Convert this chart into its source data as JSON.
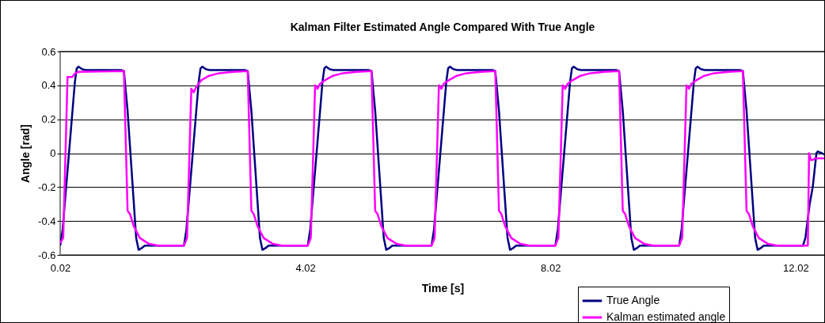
{
  "chart_data": {
    "type": "line",
    "title": "Kalman Filter Estimated Angle Compared With True Angle",
    "xlabel": "Time [s]",
    "ylabel": "Angle [rad]",
    "xlim": [
      0.02,
      12.5
    ],
    "xticks": [
      0.02,
      4.02,
      8.02,
      12.02
    ],
    "ylim": [
      -0.6,
      0.6
    ],
    "yticks": [
      -0.6,
      -0.4,
      -0.2,
      0,
      0.2,
      0.4,
      0.6
    ],
    "grid": "y",
    "legend": "bottom right",
    "line_style": "solid",
    "marker": "none",
    "series": [
      {
        "name": "True Angle",
        "color": "#000080",
        "x": [
          0.02,
          0.06,
          0.26,
          0.29,
          0.32,
          0.38,
          0.44,
          1.02,
          1.06,
          1.12,
          1.26,
          1.3,
          1.35,
          1.4,
          2.04,
          2.08,
          2.28,
          2.31,
          2.34,
          2.4,
          2.46,
          3.04,
          3.08,
          3.14,
          3.28,
          3.32,
          3.37,
          3.42,
          4.06,
          4.1,
          4.3,
          4.33,
          4.36,
          4.42,
          4.48,
          5.06,
          5.1,
          5.16,
          5.3,
          5.34,
          5.39,
          5.44,
          6.08,
          6.12,
          6.32,
          6.35,
          6.38,
          6.44,
          6.5,
          7.08,
          7.12,
          7.18,
          7.32,
          7.36,
          7.41,
          7.46,
          8.1,
          8.14,
          8.34,
          8.37,
          8.4,
          8.46,
          8.52,
          9.1,
          9.14,
          9.2,
          9.34,
          9.38,
          9.43,
          9.48,
          10.12,
          10.16,
          10.36,
          10.39,
          10.42,
          10.48,
          10.54,
          11.12,
          11.16,
          11.22,
          11.36,
          11.4,
          11.45,
          11.5,
          12.14,
          12.18,
          12.25,
          12.3,
          12.36,
          12.38,
          12.45,
          12.5
        ],
        "values": [
          -0.545,
          -0.45,
          0.42,
          0.5,
          0.51,
          0.495,
          0.49,
          0.49,
          0.485,
          0.25,
          -0.5,
          -0.57,
          -0.56,
          -0.545,
          -0.545,
          -0.45,
          0.42,
          0.5,
          0.51,
          0.495,
          0.49,
          0.49,
          0.485,
          0.25,
          -0.5,
          -0.57,
          -0.56,
          -0.545,
          -0.545,
          -0.45,
          0.42,
          0.5,
          0.51,
          0.495,
          0.49,
          0.49,
          0.485,
          0.25,
          -0.5,
          -0.57,
          -0.56,
          -0.545,
          -0.545,
          -0.45,
          0.42,
          0.5,
          0.51,
          0.495,
          0.49,
          0.49,
          0.485,
          0.25,
          -0.5,
          -0.57,
          -0.56,
          -0.545,
          -0.545,
          -0.45,
          0.42,
          0.5,
          0.51,
          0.495,
          0.49,
          0.49,
          0.485,
          0.25,
          -0.5,
          -0.57,
          -0.56,
          -0.545,
          -0.545,
          -0.45,
          0.42,
          0.5,
          0.51,
          0.495,
          0.49,
          0.49,
          0.485,
          0.25,
          -0.5,
          -0.57,
          -0.56,
          -0.545,
          -0.545,
          -0.5,
          -0.3,
          -0.2,
          0.0,
          0.01,
          0.0,
          -0.01
        ]
      },
      {
        "name": "Kalman estimated angle",
        "color": "#ff00ff",
        "x": [
          0.02,
          0.07,
          0.14,
          0.22,
          0.26,
          0.32,
          1.06,
          1.12,
          1.16,
          1.22,
          1.32,
          1.47,
          1.62,
          2.04,
          2.09,
          2.16,
          2.2,
          2.24,
          2.32,
          2.44,
          2.59,
          2.84,
          3.08,
          3.14,
          3.18,
          3.24,
          3.34,
          3.49,
          3.64,
          4.06,
          4.11,
          4.18,
          4.22,
          4.26,
          4.34,
          4.46,
          4.61,
          4.86,
          5.1,
          5.16,
          5.2,
          5.26,
          5.36,
          5.51,
          5.66,
          6.08,
          6.13,
          6.2,
          6.24,
          6.28,
          6.36,
          6.48,
          6.63,
          6.88,
          7.12,
          7.18,
          7.22,
          7.28,
          7.38,
          7.53,
          7.68,
          8.1,
          8.15,
          8.22,
          8.26,
          8.3,
          8.38,
          8.5,
          8.65,
          8.9,
          9.14,
          9.2,
          9.24,
          9.3,
          9.4,
          9.55,
          9.7,
          10.12,
          10.17,
          10.24,
          10.28,
          10.32,
          10.4,
          10.52,
          10.67,
          10.92,
          11.16,
          11.22,
          11.26,
          11.32,
          11.42,
          11.57,
          11.72,
          12.22,
          12.24,
          12.27,
          12.3,
          12.34,
          12.5
        ],
        "values": [
          -0.53,
          -0.5,
          0.45,
          0.45,
          0.47,
          0.48,
          0.485,
          -0.34,
          -0.36,
          -0.43,
          -0.5,
          -0.535,
          -0.545,
          -0.545,
          -0.5,
          0.38,
          0.36,
          0.39,
          0.43,
          0.455,
          0.47,
          0.48,
          0.485,
          -0.34,
          -0.36,
          -0.43,
          -0.5,
          -0.535,
          -0.545,
          -0.545,
          -0.5,
          0.4,
          0.38,
          0.41,
          0.43,
          0.455,
          0.47,
          0.48,
          0.485,
          -0.34,
          -0.36,
          -0.43,
          -0.5,
          -0.535,
          -0.545,
          -0.545,
          -0.5,
          0.4,
          0.38,
          0.41,
          0.43,
          0.455,
          0.47,
          0.48,
          0.485,
          -0.34,
          -0.36,
          -0.43,
          -0.5,
          -0.535,
          -0.545,
          -0.545,
          -0.5,
          0.4,
          0.38,
          0.41,
          0.43,
          0.455,
          0.47,
          0.48,
          0.485,
          -0.34,
          -0.36,
          -0.43,
          -0.5,
          -0.535,
          -0.545,
          -0.545,
          -0.5,
          0.4,
          0.38,
          0.41,
          0.43,
          0.455,
          0.47,
          0.48,
          0.485,
          -0.34,
          -0.36,
          -0.43,
          -0.5,
          -0.535,
          -0.545,
          -0.545,
          0.0,
          -0.04,
          -0.04,
          -0.03,
          -0.03
        ]
      }
    ]
  }
}
